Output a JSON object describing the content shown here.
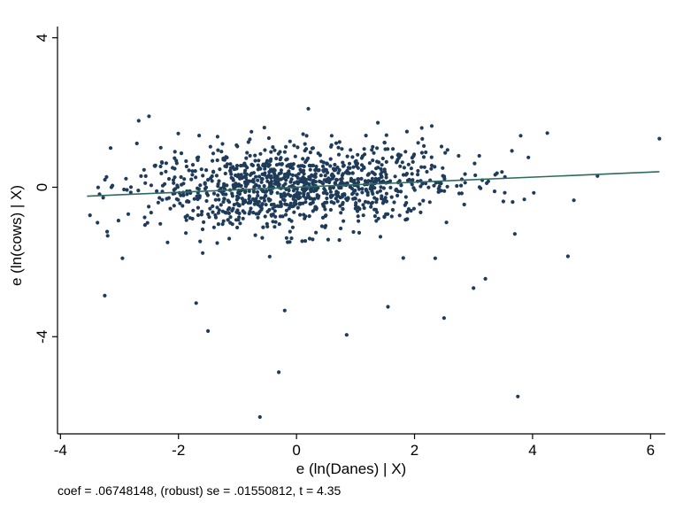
{
  "chart_data": {
    "type": "scatter",
    "title": "",
    "xlabel": "e (ln(Danes) | X)",
    "ylabel": "e (ln(cows) | X)",
    "xlim": [
      -4.05,
      6.25
    ],
    "ylim": [
      -6.6,
      4.3
    ],
    "xticks": [
      -4,
      -2,
      0,
      2,
      4,
      6
    ],
    "xtick_labels": [
      "-4",
      "-2",
      "0",
      "2",
      "4",
      "6"
    ],
    "yticks": [
      -4,
      0,
      4
    ],
    "ytick_labels": [
      "-4",
      "0",
      "4"
    ],
    "grid": false,
    "legend": "none",
    "colors": {
      "points": "#1f3b5a",
      "fit_line": "#2e6b5e"
    },
    "fit_line": {
      "slope": 0.06748148,
      "intercept": 0.0,
      "x_range": [
        -3.55,
        6.15
      ]
    },
    "note": "coef = .06748148, (robust) se = .01550812, t = 4.35",
    "outliers": [
      {
        "x": -0.62,
        "y": -6.15
      },
      {
        "x": 3.75,
        "y": -5.6
      },
      {
        "x": -0.3,
        "y": -4.95
      },
      {
        "x": -1.5,
        "y": -3.85
      },
      {
        "x": 0.85,
        "y": -3.95
      },
      {
        "x": -3.25,
        "y": -2.9
      },
      {
        "x": 2.5,
        "y": -3.5
      },
      {
        "x": 4.6,
        "y": -1.85
      },
      {
        "x": 3.2,
        "y": -2.45
      },
      {
        "x": 3.0,
        "y": -2.7
      },
      {
        "x": 1.55,
        "y": -3.2
      },
      {
        "x": -1.7,
        "y": -3.1
      },
      {
        "x": 2.35,
        "y": -1.9
      },
      {
        "x": 6.15,
        "y": 1.3
      },
      {
        "x": 5.1,
        "y": 0.3
      },
      {
        "x": 4.7,
        "y": -0.35
      },
      {
        "x": 0.2,
        "y": 2.1
      },
      {
        "x": -2.5,
        "y": 1.9
      },
      {
        "x": -3.15,
        "y": 1.05
      },
      {
        "x": -3.5,
        "y": -0.75
      },
      {
        "x": -3.2,
        "y": -1.3
      },
      {
        "x": -2.95,
        "y": -1.9
      },
      {
        "x": 4.25,
        "y": 1.45
      },
      {
        "x": -0.2,
        "y": -3.3
      },
      {
        "x": 3.7,
        "y": -1.25
      }
    ],
    "cloud": {
      "count": 1150,
      "x_center": 0.0,
      "x_sd": 1.35,
      "x_range": [
        -3.4,
        4.4
      ],
      "y_sd": 0.55,
      "y_range": [
        -2.2,
        1.9
      ]
    }
  }
}
